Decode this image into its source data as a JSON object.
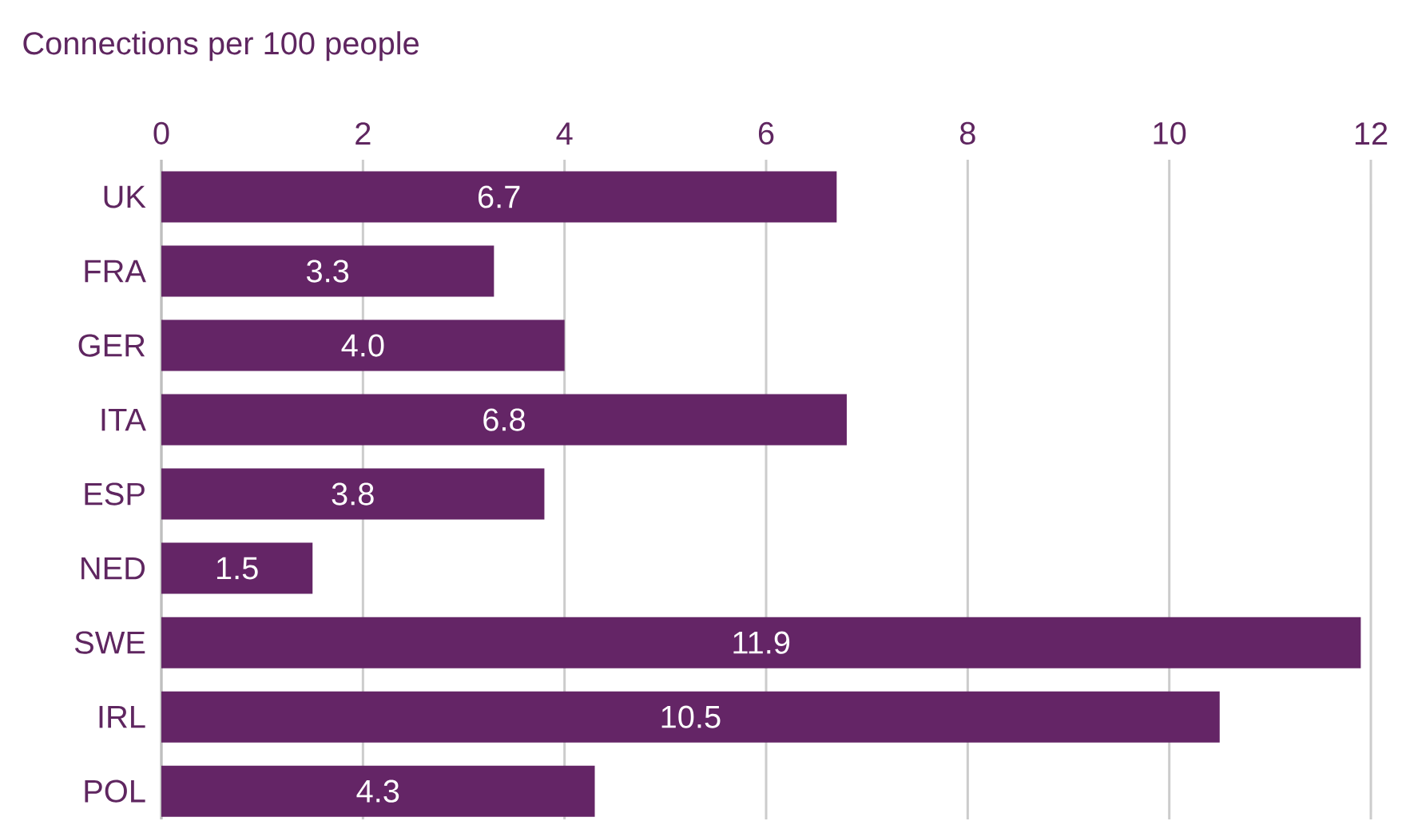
{
  "chart_data": {
    "type": "bar",
    "orientation": "horizontal",
    "xlabel": "Connections per 100 people",
    "categories": [
      "UK",
      "FRA",
      "GER",
      "ITA",
      "ESP",
      "NED",
      "SWE",
      "IRL",
      "POL"
    ],
    "values": [
      6.7,
      3.3,
      4.0,
      6.8,
      3.8,
      1.5,
      11.9,
      10.5,
      4.3
    ],
    "value_labels": [
      "6.7",
      "3.3",
      "4.0",
      "6.8",
      "3.8",
      "1.5",
      "11.9",
      "10.5",
      "4.3"
    ],
    "color": "#642566",
    "grid": "x",
    "xlim": [
      0,
      12
    ],
    "xticks": [
      0,
      2,
      4,
      6,
      8,
      10,
      12
    ]
  }
}
